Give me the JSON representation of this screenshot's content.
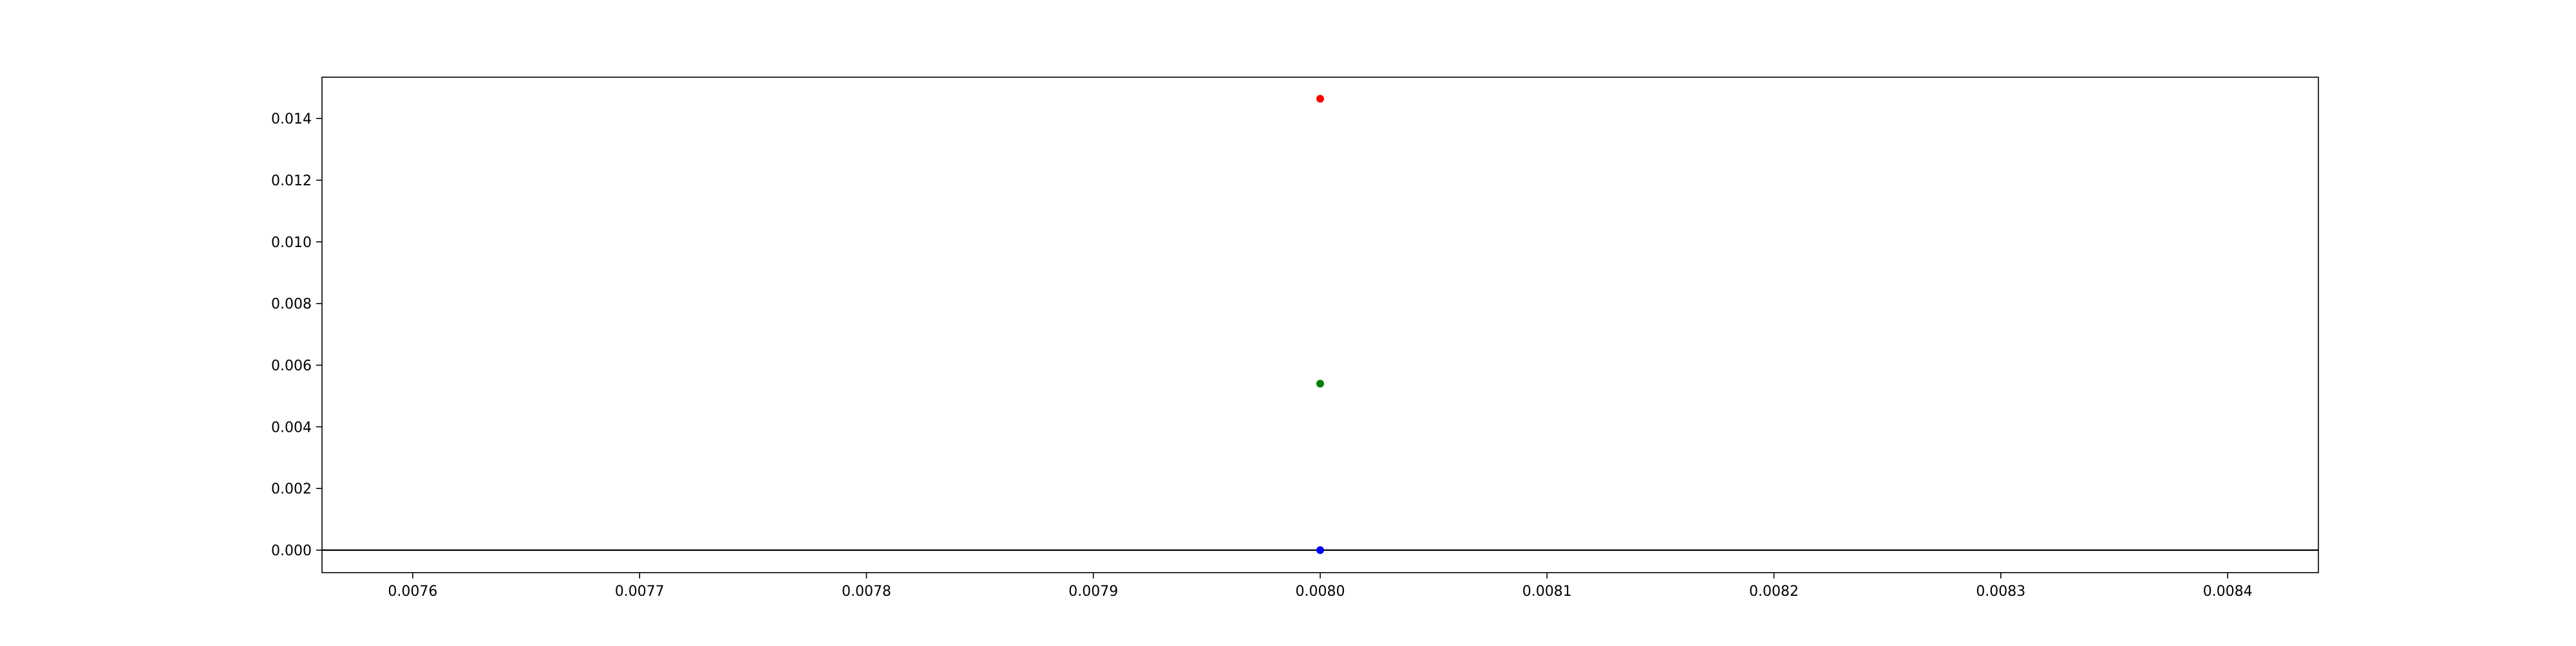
{
  "chart_data": {
    "type": "scatter",
    "title": "",
    "xlabel": "",
    "ylabel": "",
    "xlim": [
      0.00756,
      0.00844
    ],
    "ylim": [
      -0.00073,
      0.01534
    ],
    "x_ticks": [
      0.0076,
      0.0077,
      0.0078,
      0.0079,
      0.008,
      0.0081,
      0.0082,
      0.0083,
      0.0084
    ],
    "x_tick_labels": [
      "0.0076",
      "0.0077",
      "0.0078",
      "0.0079",
      "0.0080",
      "0.0081",
      "0.0082",
      "0.0083",
      "0.0084"
    ],
    "y_ticks": [
      0,
      0.002,
      0.004,
      0.006,
      0.008,
      0.01,
      0.012,
      0.014
    ],
    "y_tick_labels": [
      "0.000",
      "0.002",
      "0.004",
      "0.006",
      "0.008",
      "0.010",
      "0.012",
      "0.014"
    ],
    "horizontal_line_y": 0,
    "grid": false,
    "series": [
      {
        "x": [
          0.008
        ],
        "y": [
          0.01464
        ],
        "color": "#ff0000"
      },
      {
        "x": [
          0.008
        ],
        "y": [
          0.0054
        ],
        "color": "#008000"
      },
      {
        "x": [
          0.008
        ],
        "y": [
          0.0
        ],
        "color": "#0000ff"
      }
    ]
  }
}
